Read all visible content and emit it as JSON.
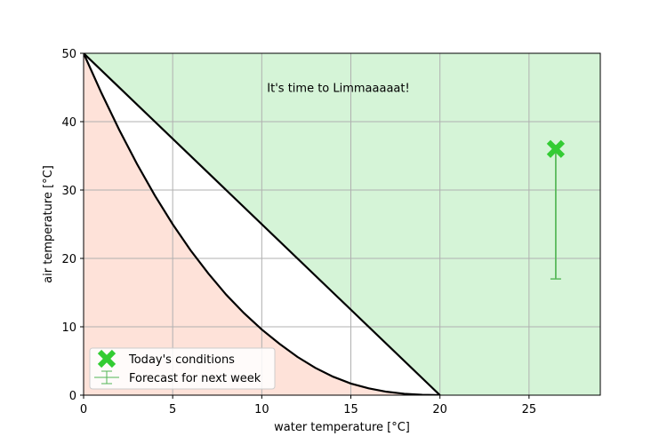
{
  "chart_data": {
    "type": "line",
    "title": "",
    "xlabel": "water temperature [°C]",
    "ylabel": "air temperature [°C]",
    "xlim": [
      0,
      29
    ],
    "ylim": [
      0,
      50
    ],
    "x_ticks": [
      0,
      5,
      10,
      15,
      20,
      25
    ],
    "y_ticks": [
      0,
      10,
      20,
      30,
      40,
      50
    ],
    "grid": true,
    "annotation": {
      "text": "It's time to Limmaaaaat!",
      "x": 14.3,
      "y": 45
    },
    "regions": {
      "go_color": "#d5f4d7",
      "nogo_color": "#fee2d9",
      "mid_color": "#ffffff"
    },
    "upper_boundary": {
      "x": [
        0,
        20
      ],
      "y": [
        50,
        0
      ]
    },
    "lower_boundary": {
      "x": [
        0,
        1,
        2,
        3,
        4,
        5,
        6,
        7,
        8,
        9,
        10,
        11,
        12,
        13,
        14,
        15,
        16,
        17,
        18,
        19,
        20
      ],
      "y": [
        50,
        44.2,
        38.8,
        33.8,
        29.2,
        25.0,
        21.2,
        17.8,
        14.7,
        12.0,
        9.6,
        7.5,
        5.6,
        4.0,
        2.7,
        1.7,
        1.0,
        0.5,
        0.2,
        0.05,
        0
      ]
    },
    "today": {
      "label": "Today's conditions",
      "x": 26.5,
      "y": 36,
      "color": "#33cc33"
    },
    "forecast": {
      "label": "Forecast for next week",
      "x": 26.5,
      "y_low": 17,
      "y_high": 36.5,
      "color": "#5ab95c"
    },
    "legend_placement": "lower-left"
  }
}
